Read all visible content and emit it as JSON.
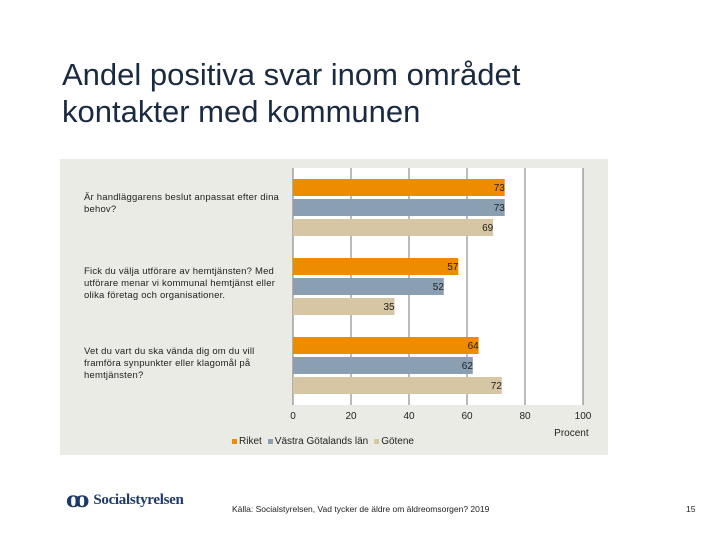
{
  "title": {
    "line1": "Andel positiva svar inom området",
    "line2": "kontakter med kommunen"
  },
  "chart_data": {
    "type": "bar",
    "orientation": "horizontal",
    "categories": [
      "Är handläggarens beslut anpassat efter dina behov?",
      "Fick du välja utförare av hemtjänsten? Med utförare menar vi kommunal hemtjänst eller olika företag och organisationer.",
      "Vet du vart du ska vända dig om du vill framföra synpunkter eller klagomål på hemtjänsten?"
    ],
    "series": [
      {
        "name": "Riket",
        "color": "#ee8c00",
        "values": [
          73,
          57,
          64
        ]
      },
      {
        "name": "Västra Götalands län",
        "color": "#8aa0b2",
        "values": [
          73,
          52,
          62
        ]
      },
      {
        "name": "Götene",
        "color": "#d7c6a4",
        "values": [
          69,
          35,
          72
        ]
      }
    ],
    "xlim": [
      0,
      100
    ],
    "x_ticks": [
      0,
      20,
      40,
      60,
      80,
      100
    ],
    "xlabel": "Procent",
    "legend_position": "bottom"
  },
  "footer": {
    "logo_text": "Socialstyrelsen",
    "source": "Källa: Socialstyrelsen, Vad tycker de äldre om äldreomsorgen? 2019",
    "page_number": "15"
  }
}
